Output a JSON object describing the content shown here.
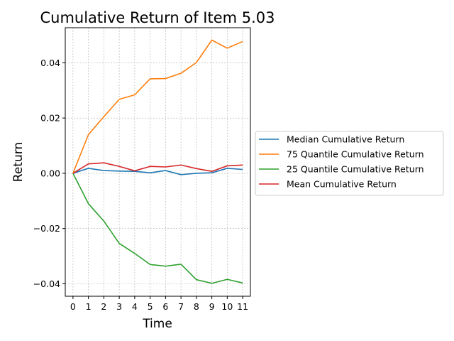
{
  "chart_data": {
    "type": "line",
    "title": "Cumulative Return of Item 5.03",
    "xlabel": "Time",
    "ylabel": "Return",
    "x": [
      0,
      1,
      2,
      3,
      4,
      5,
      6,
      7,
      8,
      9,
      10,
      11
    ],
    "xlim": [
      -0.5,
      11.5
    ],
    "ylim": [
      -0.0445,
      0.0527
    ],
    "yticks": [
      -0.04,
      -0.02,
      0.0,
      0.02,
      0.04
    ],
    "ytick_labels": [
      "−0.04",
      "−0.02",
      "0.00",
      "0.02",
      "0.04"
    ],
    "grid": true,
    "legend_position": "center-right outside",
    "series": [
      {
        "name": "Median Cumulative Return",
        "color": "#1f77b4",
        "values": [
          0.0,
          0.0018,
          0.001,
          0.0008,
          0.0007,
          0.0002,
          0.001,
          -0.0005,
          0.0,
          0.0002,
          0.0018,
          0.0014
        ]
      },
      {
        "name": "75 Quantile Cumulative Return",
        "color": "#ff7f0e",
        "values": [
          0.0,
          0.014,
          0.0205,
          0.0268,
          0.0284,
          0.0342,
          0.0343,
          0.0362,
          0.0401,
          0.0482,
          0.0453,
          0.0477
        ]
      },
      {
        "name": "25 Quantile Cumulative Return",
        "color": "#2ca02c",
        "values": [
          0.0,
          -0.011,
          -0.0173,
          -0.0254,
          -0.029,
          -0.033,
          -0.0336,
          -0.0329,
          -0.0385,
          -0.0398,
          -0.0384,
          -0.0397
        ]
      },
      {
        "name": "Mean Cumulative Return",
        "color": "#d62728",
        "values": [
          0.0,
          0.0034,
          0.0038,
          0.0025,
          0.0009,
          0.0025,
          0.0023,
          0.003,
          0.0017,
          0.0007,
          0.0027,
          0.003
        ]
      }
    ]
  }
}
